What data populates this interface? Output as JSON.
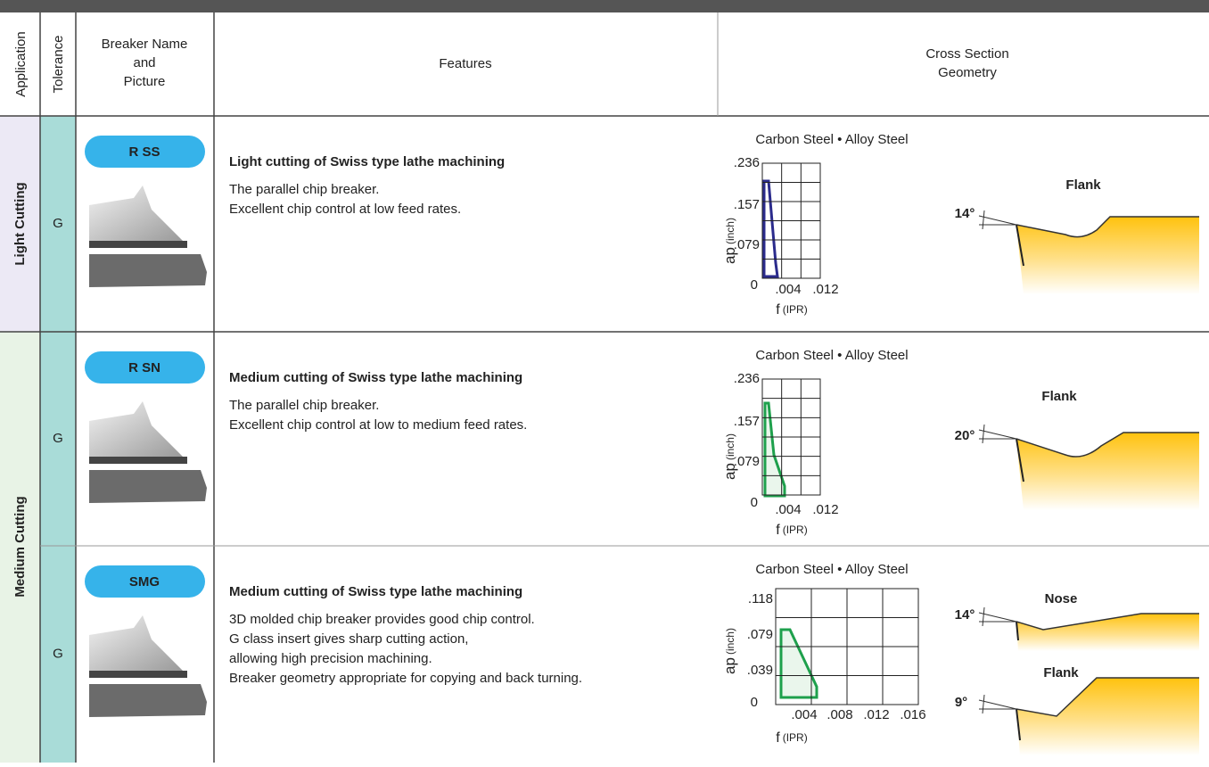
{
  "header": {
    "application": "Application",
    "tolerance": "Tolerance",
    "breaker": [
      "Breaker Name",
      "and",
      "Picture"
    ],
    "features": "Features",
    "geometry": [
      "Cross Section",
      "Geometry"
    ]
  },
  "applications": [
    "Light Cutting",
    "Medium Cutting"
  ],
  "rows": [
    {
      "tolerance": "G",
      "breaker": "R SS",
      "title": "Light cutting of Swiss type lathe machining",
      "description": [
        "The parallel chip breaker.",
        "Excellent chip control at low feed rates."
      ],
      "chart": {
        "title": "Carbon Steel • Alloy Steel",
        "y_label": "ap",
        "y_unit": "(inch)",
        "x_label": "f",
        "x_unit": "(IPR)",
        "yticks": [
          ".236",
          ".157",
          ".079",
          "0"
        ],
        "xticks": [
          ".004",
          ".012"
        ]
      },
      "geometry": [
        {
          "view": "Flank",
          "angle": "14°"
        }
      ]
    },
    {
      "tolerance": "G",
      "breaker": "R SN",
      "title": "Medium cutting of Swiss type lathe machining",
      "description": [
        "The parallel chip breaker.",
        "Excellent chip control at low to medium feed rates."
      ],
      "chart": {
        "title": "Carbon Steel • Alloy Steel",
        "y_label": "ap",
        "y_unit": "(inch)",
        "x_label": "f",
        "x_unit": "(IPR)",
        "yticks": [
          ".236",
          ".157",
          ".079",
          "0"
        ],
        "xticks": [
          ".004",
          ".012"
        ]
      },
      "geometry": [
        {
          "view": "Flank",
          "angle": "20°"
        }
      ]
    },
    {
      "tolerance": "G",
      "breaker": "SMG",
      "title": "Medium cutting of Swiss type lathe machining",
      "description": [
        "3D molded chip breaker provides good chip control.",
        "G class insert gives sharp cutting action,",
        "allowing high precision machining.",
        "Breaker geometry appropriate for copying and back turning."
      ],
      "chart": {
        "title": "Carbon Steel • Alloy Steel",
        "y_label": "ap",
        "y_unit": "(inch)",
        "x_label": "f",
        "x_unit": "(IPR)",
        "yticks": [
          ".118",
          ".079",
          ".039",
          "0"
        ],
        "xticks": [
          ".004",
          ".008",
          ".012",
          ".016"
        ]
      },
      "geometry": [
        {
          "view": "Nose",
          "angle": "14°"
        },
        {
          "view": "Flank",
          "angle": "9°"
        }
      ]
    }
  ]
}
